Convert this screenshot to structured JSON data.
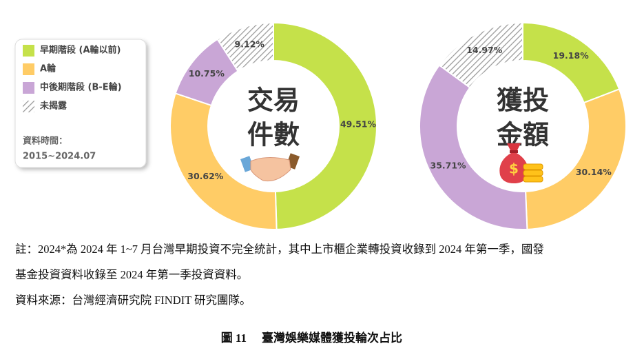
{
  "chart_data": [
    {
      "type": "pie",
      "center_title": [
        "交易",
        "件數"
      ],
      "categories": [
        "早期階段 (A輪以前)",
        "A輪",
        "中後期階段 (B-E輪)",
        "未揭露"
      ],
      "colors": [
        "#c5e14a",
        "#ffcc66",
        "#c9a6d6",
        "#b0b0b0"
      ],
      "patterns": [
        "solid",
        "solid",
        "solid",
        "hatch"
      ],
      "values": [
        49.51,
        30.62,
        10.75,
        9.12
      ],
      "value_labels": [
        "49.51%",
        "30.62%",
        "10.75%",
        "9.12%"
      ],
      "legend_note": [
        "資料時間：",
        "2015~2024.07"
      ]
    },
    {
      "type": "pie",
      "center_title": [
        "獲投",
        "金額"
      ],
      "categories": [
        "早期階段 (A輪以前)",
        "A輪",
        "中後期階段 (B-E輪)",
        "未揭露"
      ],
      "colors": [
        "#c5e14a",
        "#ffcc66",
        "#c9a6d6",
        "#b0b0b0"
      ],
      "patterns": [
        "solid",
        "solid",
        "solid",
        "hatch"
      ],
      "values": [
        19.18,
        30.14,
        35.71,
        14.97
      ],
      "value_labels": [
        "19.18%",
        "30.14%",
        "35.71%",
        "14.97%"
      ]
    }
  ],
  "notes": [
    "註：2024*為 2024 年 1~7 月台灣早期投資不完全統計，其中上市櫃企業轉投資收錄到 2024 年第一季，國發",
    "基金投資資料收錄至 2024 年第一季投資資料。",
    "資料來源：台灣經濟研究院 FINDIT 研究團隊。"
  ],
  "caption": {
    "label": "圖 11",
    "text": "臺灣娛樂媒體獲投輪次占比"
  }
}
